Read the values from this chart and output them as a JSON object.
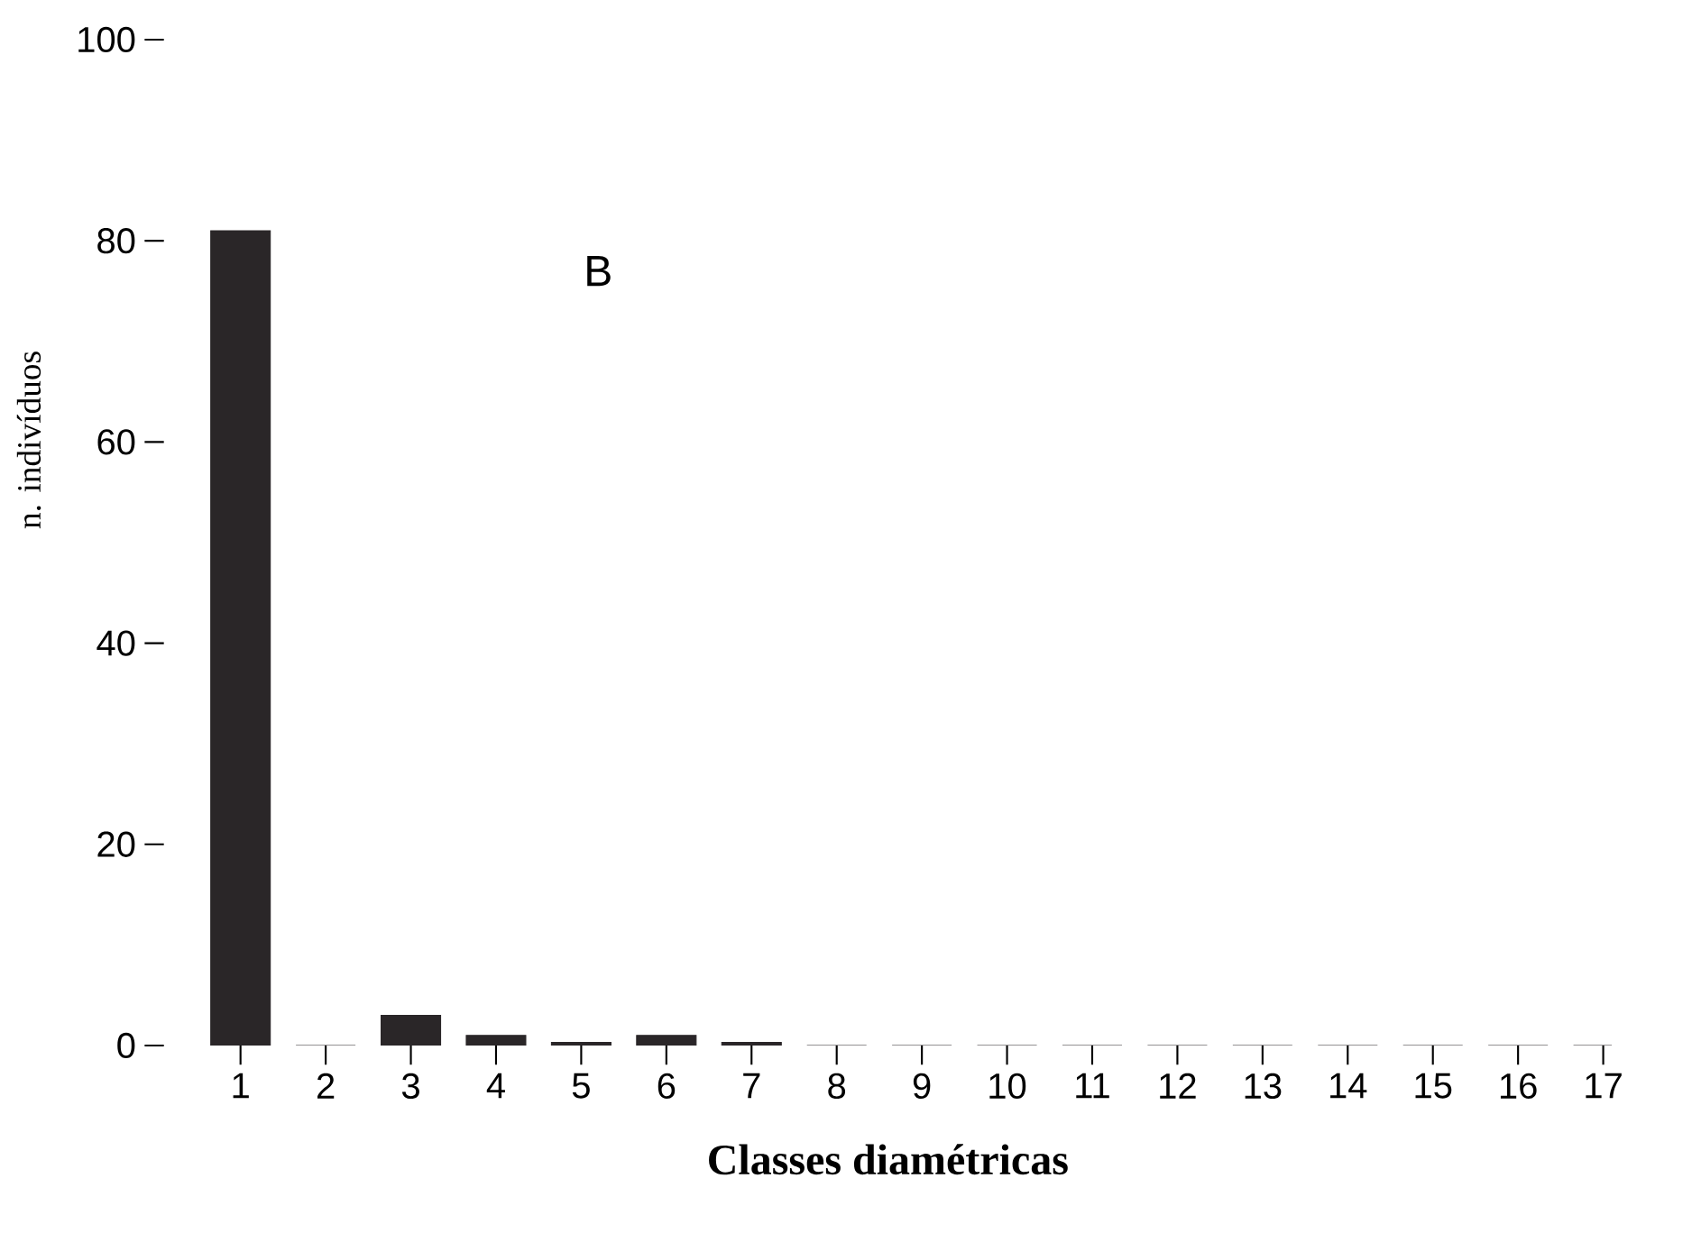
{
  "chart_data": {
    "type": "bar",
    "xlabel": "Classes diamétricas",
    "ylabel": "n. indivíduos",
    "categories": [
      "1",
      "2",
      "3",
      "4",
      "5",
      "6",
      "7",
      "8",
      "9",
      "10",
      "11",
      "12",
      "13",
      "14",
      "15",
      "16",
      "17"
    ],
    "values": [
      81,
      0,
      3,
      1,
      0.3,
      1,
      0.3,
      0,
      0,
      0,
      0,
      0,
      0,
      0,
      0,
      0,
      0
    ],
    "color": "#2a2628",
    "ylim": [
      0,
      100
    ],
    "yticks": [
      0,
      20,
      40,
      60,
      80,
      100
    ],
    "grid": false,
    "annotations": [
      "B"
    ]
  }
}
